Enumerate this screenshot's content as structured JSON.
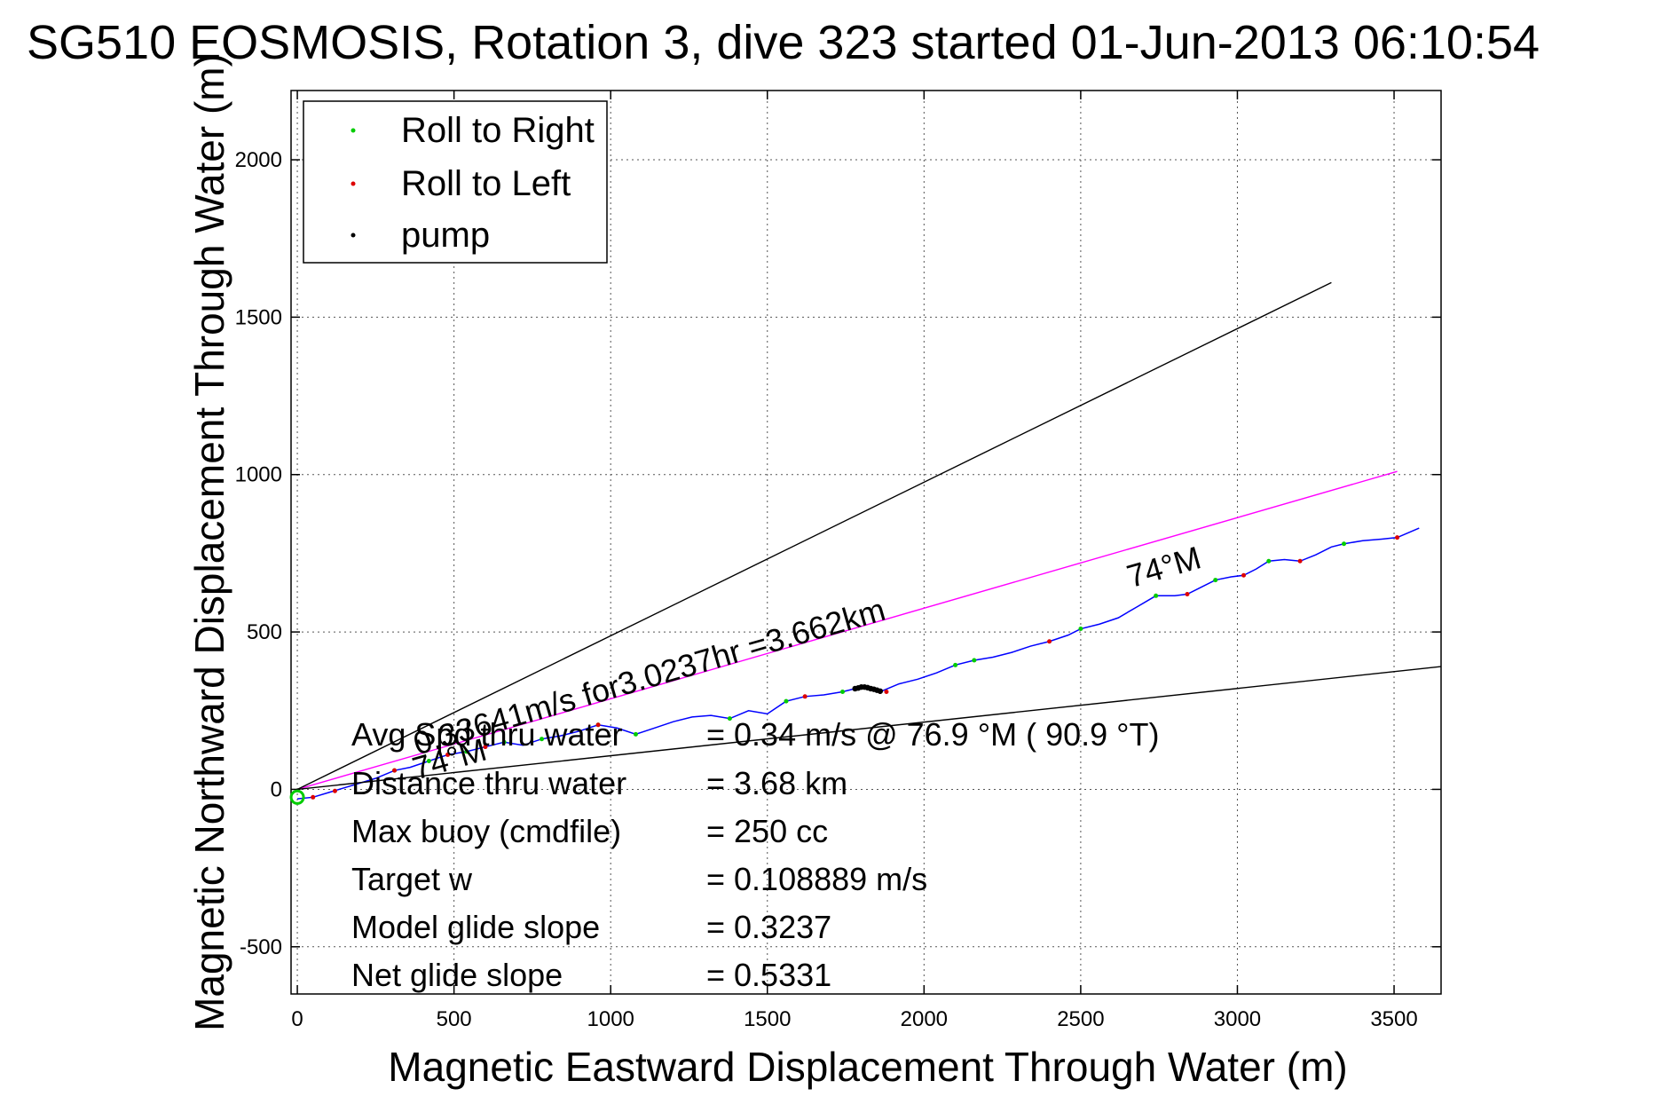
{
  "chart_data": {
    "type": "line",
    "title": "SG510 EOSMOSIS, Rotation 3, dive 323 started 01-Jun-2013 06:10:54",
    "xlabel": "Magnetic Eastward Displacement Through Water (m)",
    "ylabel": "Magnetic Northward Displacement Through Water (m)",
    "xlim": [
      -20,
      3650
    ],
    "ylim": [
      -650,
      2220
    ],
    "xticks": [
      0,
      500,
      1000,
      1500,
      2000,
      2500,
      3000,
      3500
    ],
    "yticks": [
      -500,
      0,
      500,
      1000,
      1500,
      2000
    ],
    "grid": true,
    "legend_position": "top-left",
    "legend": [
      {
        "label": "Roll to Right",
        "color": "#00cc00"
      },
      {
        "label": "Roll to Left",
        "color": "#dd0000"
      },
      {
        "label": "pump",
        "color": "#000000"
      }
    ],
    "series": [
      {
        "color": "#0000ff",
        "x": [
          0,
          50,
          100,
          150,
          200,
          250,
          310,
          360,
          420,
          480,
          540,
          600,
          660,
          720,
          780,
          840,
          900,
          960,
          1020,
          1080,
          1140,
          1200,
          1260,
          1320,
          1380,
          1440,
          1500,
          1560,
          1620,
          1680,
          1740,
          1800,
          1860,
          1920,
          1980,
          2040,
          2100,
          2160,
          2220,
          2280,
          2340,
          2400,
          2460,
          2500,
          2560,
          2620,
          2680,
          2740,
          2800,
          2840,
          2880,
          2930,
          2980,
          3020,
          3060,
          3100,
          3150,
          3200,
          3250,
          3300,
          3340,
          3400,
          3460,
          3510,
          3580
        ],
        "y": [
          -30,
          -25,
          -10,
          5,
          20,
          35,
          60,
          70,
          90,
          110,
          120,
          135,
          150,
          140,
          160,
          170,
          185,
          205,
          195,
          175,
          195,
          215,
          230,
          235,
          225,
          250,
          240,
          280,
          295,
          300,
          310,
          325,
          310,
          335,
          350,
          370,
          395,
          410,
          420,
          435,
          455,
          470,
          490,
          510,
          525,
          545,
          580,
          615,
          615,
          620,
          640,
          665,
          675,
          680,
          700,
          725,
          730,
          725,
          745,
          770,
          780,
          790,
          795,
          800,
          830
        ]
      },
      {
        "color": "#ff00ff",
        "x": [
          0,
          3510
        ],
        "y": [
          0,
          1010
        ]
      },
      {
        "color": "#000000",
        "x": [
          0,
          3300
        ],
        "y": [
          0,
          1610
        ]
      },
      {
        "color": "#000000",
        "x": [
          0,
          3650
        ],
        "y": [
          0,
          390
        ]
      }
    ],
    "roll_right_points": {
      "x": [
        310,
        420,
        540,
        660,
        780,
        960,
        1080,
        1380,
        1560,
        1740,
        2100,
        2160,
        2500,
        2740,
        2930,
        3100,
        3340
      ],
      "y": [
        60,
        90,
        120,
        150,
        160,
        205,
        175,
        225,
        280,
        310,
        395,
        410,
        510,
        615,
        665,
        725,
        780
      ]
    },
    "roll_left_points": {
      "x": [
        50,
        120,
        310,
        480,
        600,
        960,
        1620,
        1860,
        1880,
        2400,
        2840,
        3020,
        3200,
        3510
      ],
      "y": [
        -25,
        -5,
        60,
        110,
        135,
        205,
        295,
        310,
        310,
        470,
        620,
        680,
        725,
        800
      ]
    },
    "pump_points": {
      "x": [
        1780,
        1790,
        1800,
        1810,
        1820,
        1830,
        1840,
        1850,
        1860
      ],
      "y": [
        320,
        322,
        325,
        325,
        323,
        320,
        318,
        315,
        312
      ]
    },
    "annotations": [
      {
        "text": "0.33641m/s for3.0237hr =3.662km"
      },
      {
        "text": "74°M",
        "x": 2660,
        "y": 640
      },
      {
        "text": "74°M",
        "x": 380,
        "y": 30
      }
    ],
    "stats": [
      {
        "label": "Avg Spd thru water",
        "value": "=  0.34 m/s @  76.9 °M ( 90.9 °T)"
      },
      {
        "label": "Distance thru water",
        "value": "=  3.68 km"
      },
      {
        "label": "Max buoy (cmdfile)",
        "value": "= 250 cc"
      },
      {
        "label": "Target w",
        "value": "= 0.108889 m/s"
      },
      {
        "label": "Model glide slope",
        "value": "= 0.3237"
      },
      {
        "label": "Net glide slope",
        "value": "= 0.5331"
      }
    ]
  }
}
